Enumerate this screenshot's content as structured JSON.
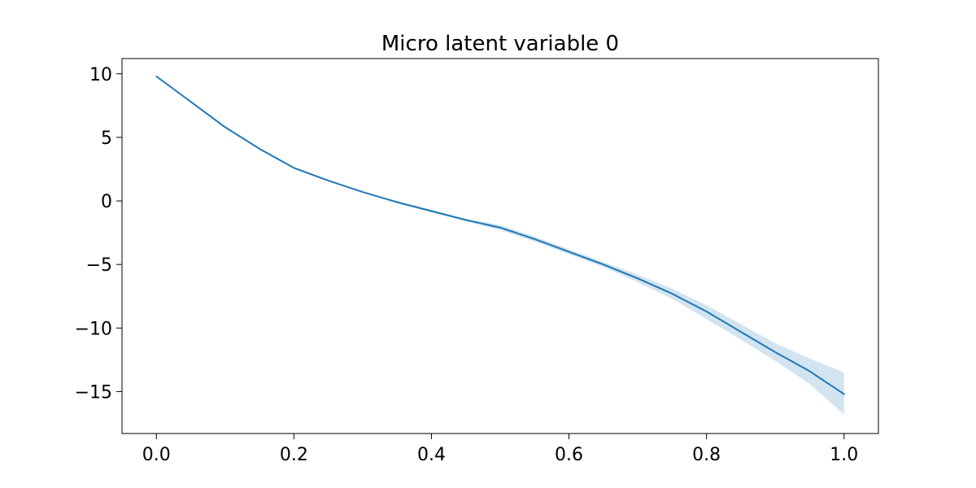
{
  "chart_data": {
    "type": "line",
    "title": "Micro latent variable 0",
    "xlabel": "",
    "ylabel": "",
    "xlim": [
      -0.05,
      1.05
    ],
    "ylim": [
      -18.3,
      11.2
    ],
    "xticks": [
      0.0,
      0.2,
      0.4,
      0.6,
      0.8,
      1.0
    ],
    "xtick_labels": [
      "0.0",
      "0.2",
      "0.4",
      "0.6",
      "0.8",
      "1.0"
    ],
    "yticks": [
      10,
      5,
      0,
      -5,
      -10,
      -15
    ],
    "ytick_labels": [
      "10",
      "5",
      "0",
      "−5",
      "−10",
      "−15"
    ],
    "grid": false,
    "legend": "none",
    "series": [
      {
        "color": "#1f77b4",
        "band_color": "#1f77b4",
        "x": [
          0.0,
          0.05,
          0.1,
          0.15,
          0.2,
          0.25,
          0.3,
          0.35,
          0.4,
          0.45,
          0.5,
          0.55,
          0.6,
          0.65,
          0.7,
          0.75,
          0.8,
          0.85,
          0.9,
          0.95,
          1.0
        ],
        "y": [
          9.8,
          7.8,
          5.8,
          4.1,
          2.6,
          1.6,
          0.7,
          -0.1,
          -0.8,
          -1.5,
          -2.1,
          -3.0,
          -4.0,
          -5.0,
          -6.1,
          -7.3,
          -8.7,
          -10.3,
          -11.9,
          -13.4,
          -15.2
        ],
        "lower": [
          9.8,
          7.8,
          5.8,
          4.1,
          2.6,
          1.6,
          0.7,
          -0.2,
          -0.9,
          -1.6,
          -2.3,
          -3.2,
          -4.2,
          -5.2,
          -6.4,
          -7.7,
          -9.3,
          -10.9,
          -12.6,
          -14.4,
          -16.8
        ],
        "upper": [
          9.8,
          7.8,
          5.8,
          4.1,
          2.6,
          1.6,
          0.7,
          0.0,
          -0.7,
          -1.4,
          -1.9,
          -2.8,
          -3.8,
          -4.8,
          -5.8,
          -6.9,
          -8.2,
          -9.7,
          -11.2,
          -12.4,
          -13.5
        ]
      }
    ]
  }
}
